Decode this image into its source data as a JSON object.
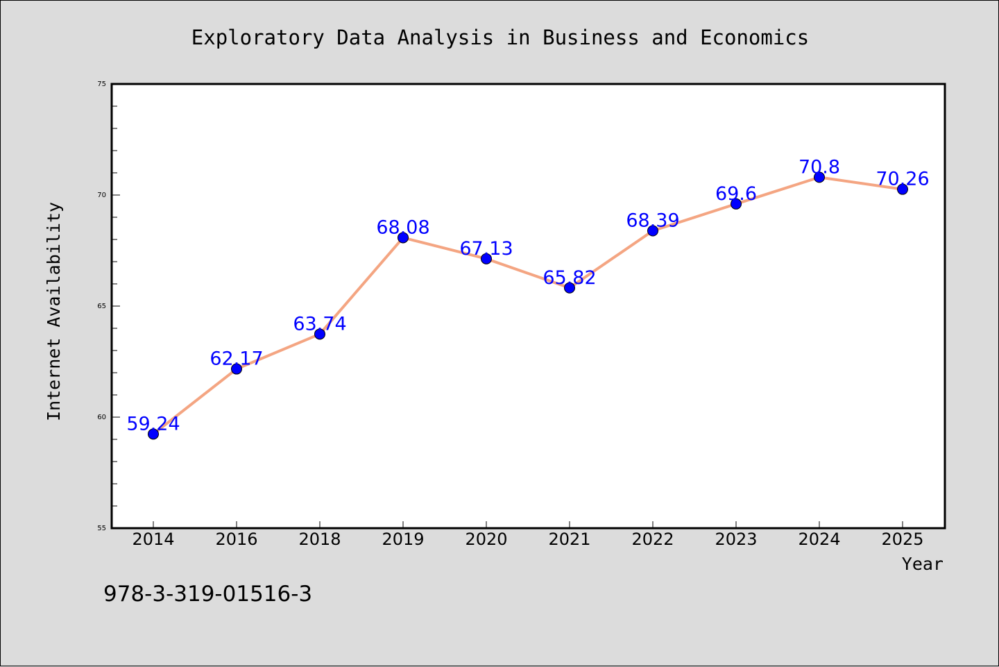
{
  "chart_data": {
    "type": "line",
    "title": "Exploratory Data Analysis in Business and Economics",
    "xlabel": "Year",
    "ylabel": "Internet Availability",
    "categories": [
      "2014",
      "2016",
      "2018",
      "2019",
      "2020",
      "2021",
      "2022",
      "2023",
      "2024",
      "2025"
    ],
    "series": [
      {
        "values": [
          59.24,
          62.17,
          63.74,
          68.08,
          67.13,
          65.82,
          68.39,
          69.6,
          70.8,
          70.26
        ],
        "labels": [
          "59.24",
          "62.17",
          "63.74",
          "68.08",
          "67.13",
          "65.82",
          "68.39",
          "69.6",
          "70.8",
          "70.26"
        ]
      }
    ],
    "ylim": [
      55,
      75
    ],
    "yticks": [
      "55",
      "60",
      "65",
      "70",
      "75"
    ],
    "grid": false,
    "legend": "none",
    "line_color": "#f4a582",
    "marker_color": "#0000ff",
    "label_color": "#0000ff",
    "annotation": "978-3-319-01516-3"
  }
}
